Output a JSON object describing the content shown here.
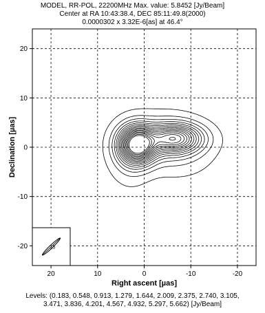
{
  "header": {
    "line1": "MODEL, RR-POL, 22200MHz Max. value: 5.8452 [Jy/Beam]",
    "line2": "Center at RA 10:43:38.4, DEC 85:11:49.8(2000)",
    "line3": "0.0000302 x 3.32E-6[as] at 46.4°"
  },
  "footer": {
    "levels_line1": "Levels: (0.183, 0.548, 0.913, 1.279, 1.644, 2.009, 2.375, 2.740, 3.105,",
    "levels_line2": "3.471, 3.836, 4.201, 4.567, 4.932, 5.297, 5.662) [Jy/Beam]"
  },
  "chart_data": {
    "type": "contour",
    "xlabel": "Right ascent [µas]",
    "ylabel": "Declination [µas]",
    "xlim": [
      24,
      -24
    ],
    "ylim": [
      -24,
      24
    ],
    "x_ticks": [
      20,
      10,
      0,
      -10,
      -20
    ],
    "y_ticks": [
      20,
      10,
      0,
      -10,
      -20
    ],
    "grid": true,
    "grid_style": "dashed",
    "beam": {
      "label": "15",
      "major": 30.2,
      "minor": 3.32,
      "pa_deg": 46.4,
      "location": "bottom-left"
    },
    "unit": "Jy/Beam",
    "max_value": 5.8452,
    "levels": [
      0.183,
      0.548,
      0.913,
      1.279,
      1.644,
      2.009,
      2.375,
      2.74,
      3.105,
      3.471,
      3.836,
      4.201,
      4.567,
      4.932,
      5.297,
      5.662
    ],
    "components": [
      {
        "x": 1.5,
        "y": 0.5,
        "amp": 5.8452,
        "sx": 2.5,
        "sy": 2.4
      },
      {
        "x": -6.5,
        "y": 1.8,
        "amp": 3.9,
        "sx": 3.8,
        "sy": 1.9
      },
      {
        "x": -3.5,
        "y": 1.2,
        "amp": 0.9,
        "sx": 5.0,
        "sy": 3.4
      },
      {
        "x": 3.0,
        "y": -1.5,
        "amp": 0.7,
        "sx": 2.8,
        "sy": 3.8
      },
      {
        "x": -8.5,
        "y": -0.5,
        "amp": 0.4,
        "sx": 4.5,
        "sy": 3.5
      }
    ],
    "colors": {
      "contour": "#000000",
      "grid": "#000000",
      "background": "#ffffff"
    }
  }
}
